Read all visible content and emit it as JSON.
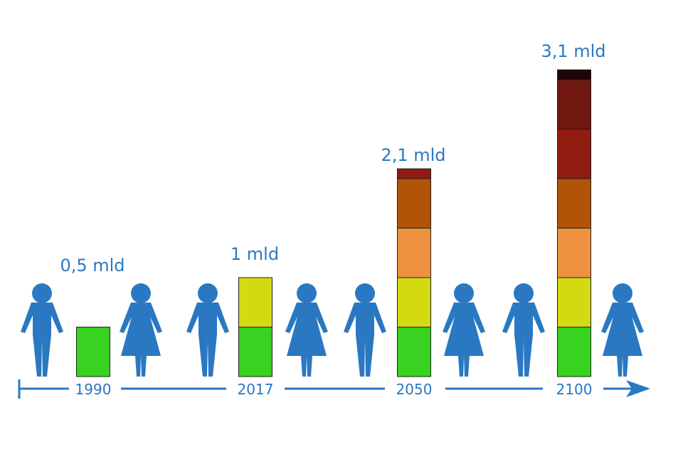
{
  "colors": {
    "accent": "#2a78c2",
    "bands": [
      "#38d220",
      "#d4da12",
      "#ee9240",
      "#b25408",
      "#901c12",
      "#701810",
      "#200408"
    ]
  },
  "chart_data": {
    "type": "bar",
    "categories": [
      "1990",
      "2017",
      "2050",
      "2100"
    ],
    "series_stacks": [
      [
        1
      ],
      [
        1,
        1
      ],
      [
        1,
        1,
        1,
        1,
        0.2
      ],
      [
        1,
        1,
        1,
        1,
        1,
        1,
        0.2
      ]
    ],
    "value_labels": [
      "0,5 mld",
      "1 mld",
      "2,1 mld",
      "3,1 mld"
    ],
    "title": "",
    "xlabel": "",
    "ylabel": "",
    "figures": [
      "man",
      "woman",
      "man",
      "woman",
      "man",
      "woman",
      "man",
      "woman"
    ],
    "grid": false,
    "legend": "none"
  }
}
